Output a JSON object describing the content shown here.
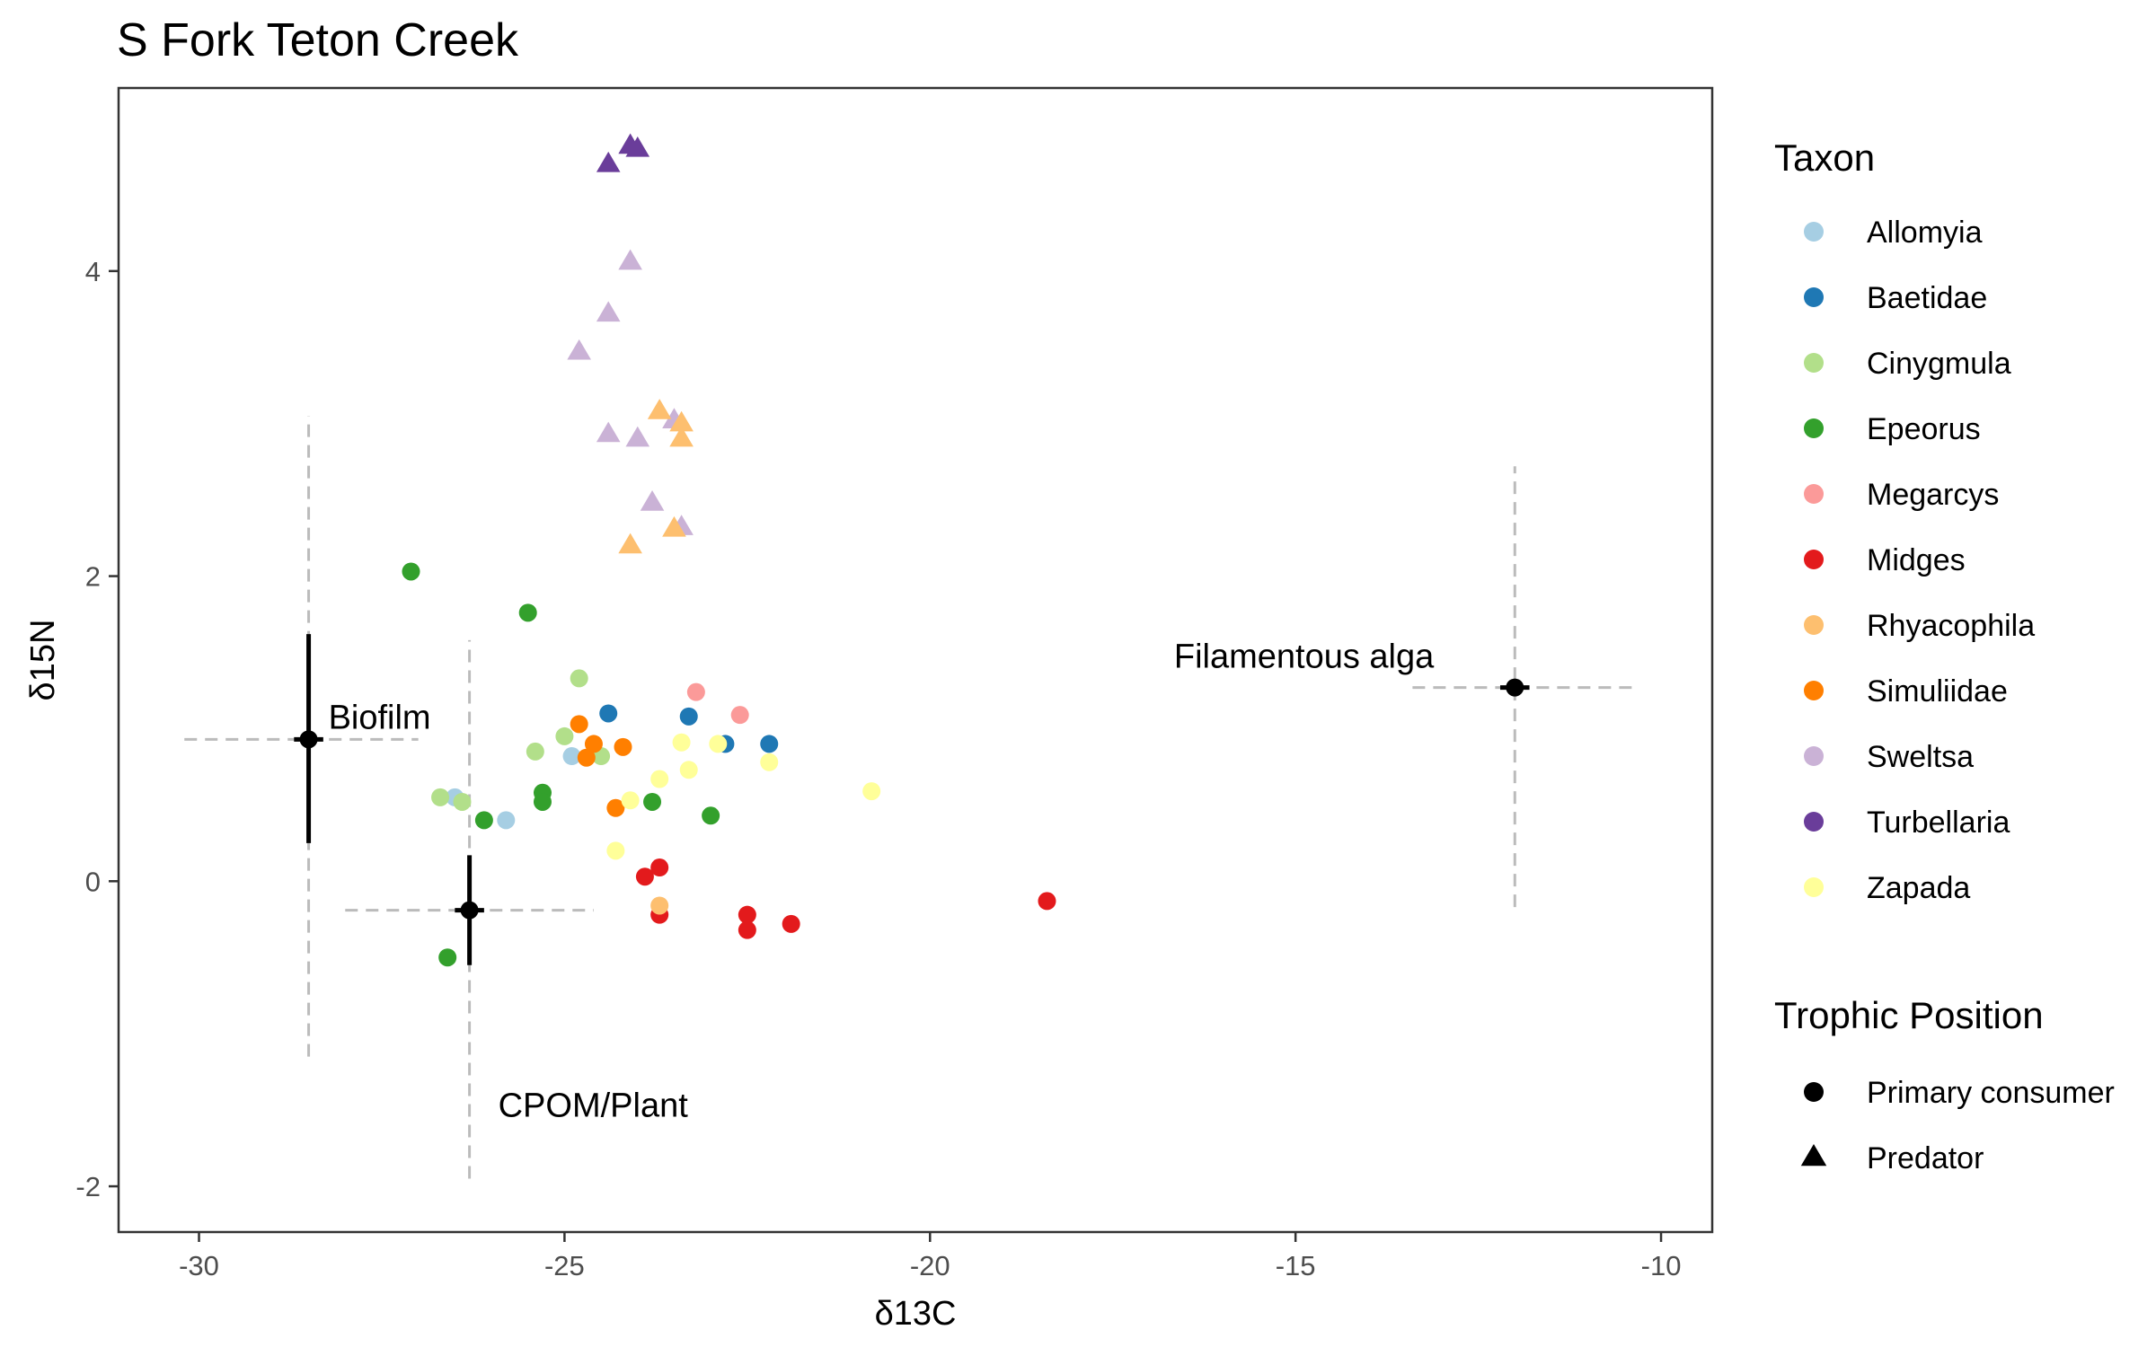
{
  "chart_data": {
    "type": "scatter",
    "title": "S Fork Teton Creek",
    "xlabel": "δ13C",
    "ylabel": "δ15N",
    "xlim": [
      -31.1,
      -9.3
    ],
    "ylim": [
      -2.3,
      5.2
    ],
    "xticks": [
      -30,
      -25,
      -20,
      -15,
      -10
    ],
    "yticks": [
      -2,
      0,
      2,
      4
    ],
    "grid": false,
    "legend_placement": "right",
    "legend": {
      "taxon_title": "Taxon",
      "trophic_title": "Trophic Position",
      "taxa": [
        {
          "name": "Allomyia",
          "color": "#a6cee3"
        },
        {
          "name": "Baetidae",
          "color": "#1f78b4"
        },
        {
          "name": "Cinygmula",
          "color": "#b2df8a"
        },
        {
          "name": "Epeorus",
          "color": "#33a02c"
        },
        {
          "name": "Megarcys",
          "color": "#fb9a99"
        },
        {
          "name": "Midges",
          "color": "#e31a1c"
        },
        {
          "name": "Rhyacophila",
          "color": "#fdbf6f"
        },
        {
          "name": "Simuliidae",
          "color": "#ff7f00"
        },
        {
          "name": "Sweltsa",
          "color": "#cab2d6"
        },
        {
          "name": "Turbellaria",
          "color": "#6a3d9a"
        },
        {
          "name": "Zapada",
          "color": "#ffff99"
        }
      ],
      "trophic": [
        {
          "name": "Primary consumer",
          "shape": "circle"
        },
        {
          "name": "Predator",
          "shape": "triangle"
        }
      ]
    },
    "sources": [
      {
        "name": "Biofilm",
        "x": -28.5,
        "y": 0.93,
        "sd_x_lo": -30.2,
        "sd_x_hi": -27.0,
        "sd_y_lo": -1.15,
        "sd_y_hi": 3.05,
        "se_y_lo": 0.25,
        "se_y_hi": 1.62,
        "se_x_lo": -28.7,
        "se_x_hi": -28.3
      },
      {
        "name": "CPOM/Plant",
        "x": -26.3,
        "y": -0.19,
        "sd_x_lo": -28.0,
        "sd_x_hi": -24.6,
        "sd_y_lo": -1.95,
        "sd_y_hi": 1.58,
        "se_y_lo": -0.55,
        "se_y_hi": 0.17,
        "se_x_lo": -26.5,
        "se_x_hi": -26.1
      },
      {
        "name": "Filamentous alga",
        "x": -12.0,
        "y": 1.27,
        "sd_x_lo": -13.4,
        "sd_x_hi": -10.4,
        "sd_y_lo": -0.17,
        "sd_y_hi": 2.72,
        "se_y_lo": 1.22,
        "se_y_hi": 1.32,
        "se_x_lo": -12.2,
        "se_x_hi": -11.8
      }
    ],
    "points": [
      {
        "taxon": "Allomyia",
        "trophic": "Primary consumer",
        "x": -26.5,
        "y": 0.55
      },
      {
        "taxon": "Allomyia",
        "trophic": "Primary consumer",
        "x": -25.8,
        "y": 0.4
      },
      {
        "taxon": "Allomyia",
        "trophic": "Primary consumer",
        "x": -24.9,
        "y": 0.82
      },
      {
        "taxon": "Baetidae",
        "trophic": "Primary consumer",
        "x": -24.4,
        "y": 1.1
      },
      {
        "taxon": "Baetidae",
        "trophic": "Primary consumer",
        "x": -23.3,
        "y": 1.08
      },
      {
        "taxon": "Baetidae",
        "trophic": "Primary consumer",
        "x": -22.8,
        "y": 0.9
      },
      {
        "taxon": "Baetidae",
        "trophic": "Primary consumer",
        "x": -22.2,
        "y": 0.9
      },
      {
        "taxon": "Cinygmula",
        "trophic": "Primary consumer",
        "x": -26.7,
        "y": 0.55
      },
      {
        "taxon": "Cinygmula",
        "trophic": "Primary consumer",
        "x": -26.4,
        "y": 0.52
      },
      {
        "taxon": "Cinygmula",
        "trophic": "Primary consumer",
        "x": -25.4,
        "y": 0.85
      },
      {
        "taxon": "Cinygmula",
        "trophic": "Primary consumer",
        "x": -25.0,
        "y": 0.95
      },
      {
        "taxon": "Cinygmula",
        "trophic": "Primary consumer",
        "x": -24.8,
        "y": 1.33
      },
      {
        "taxon": "Cinygmula",
        "trophic": "Primary consumer",
        "x": -24.5,
        "y": 0.82
      },
      {
        "taxon": "Epeorus",
        "trophic": "Primary consumer",
        "x": -27.1,
        "y": 2.03
      },
      {
        "taxon": "Epeorus",
        "trophic": "Primary consumer",
        "x": -25.5,
        "y": 1.76
      },
      {
        "taxon": "Epeorus",
        "trophic": "Primary consumer",
        "x": -25.3,
        "y": 0.58
      },
      {
        "taxon": "Epeorus",
        "trophic": "Primary consumer",
        "x": -25.3,
        "y": 0.52
      },
      {
        "taxon": "Epeorus",
        "trophic": "Primary consumer",
        "x": -26.1,
        "y": 0.4
      },
      {
        "taxon": "Epeorus",
        "trophic": "Primary consumer",
        "x": -26.6,
        "y": -0.5
      },
      {
        "taxon": "Epeorus",
        "trophic": "Primary consumer",
        "x": -23.8,
        "y": 0.52
      },
      {
        "taxon": "Epeorus",
        "trophic": "Primary consumer",
        "x": -23.0,
        "y": 0.43
      },
      {
        "taxon": "Megarcys",
        "trophic": "Primary consumer",
        "x": -23.2,
        "y": 1.24
      },
      {
        "taxon": "Megarcys",
        "trophic": "Primary consumer",
        "x": -22.6,
        "y": 1.09
      },
      {
        "taxon": "Midges",
        "trophic": "Primary consumer",
        "x": -23.9,
        "y": 0.03
      },
      {
        "taxon": "Midges",
        "trophic": "Primary consumer",
        "x": -23.7,
        "y": 0.09
      },
      {
        "taxon": "Midges",
        "trophic": "Primary consumer",
        "x": -23.7,
        "y": -0.22
      },
      {
        "taxon": "Midges",
        "trophic": "Primary consumer",
        "x": -22.5,
        "y": -0.22
      },
      {
        "taxon": "Midges",
        "trophic": "Primary consumer",
        "x": -22.5,
        "y": -0.32
      },
      {
        "taxon": "Midges",
        "trophic": "Primary consumer",
        "x": -21.9,
        "y": -0.28
      },
      {
        "taxon": "Midges",
        "trophic": "Primary consumer",
        "x": -18.4,
        "y": -0.13
      },
      {
        "taxon": "Rhyacophila",
        "trophic": "Primary consumer",
        "x": -23.7,
        "y": -0.16
      },
      {
        "taxon": "Simuliidae",
        "trophic": "Primary consumer",
        "x": -24.8,
        "y": 1.03
      },
      {
        "taxon": "Simuliidae",
        "trophic": "Primary consumer",
        "x": -24.6,
        "y": 0.9
      },
      {
        "taxon": "Simuliidae",
        "trophic": "Primary consumer",
        "x": -24.7,
        "y": 0.81
      },
      {
        "taxon": "Simuliidae",
        "trophic": "Primary consumer",
        "x": -24.2,
        "y": 0.88
      },
      {
        "taxon": "Simuliidae",
        "trophic": "Primary consumer",
        "x": -24.3,
        "y": 0.48
      },
      {
        "taxon": "Zapada",
        "trophic": "Primary consumer",
        "x": -24.1,
        "y": 0.53
      },
      {
        "taxon": "Zapada",
        "trophic": "Primary consumer",
        "x": -23.7,
        "y": 0.67
      },
      {
        "taxon": "Zapada",
        "trophic": "Primary consumer",
        "x": -23.4,
        "y": 0.91
      },
      {
        "taxon": "Zapada",
        "trophic": "Primary consumer",
        "x": -23.3,
        "y": 0.73
      },
      {
        "taxon": "Zapada",
        "trophic": "Primary consumer",
        "x": -22.9,
        "y": 0.9
      },
      {
        "taxon": "Zapada",
        "trophic": "Primary consumer",
        "x": -22.2,
        "y": 0.78
      },
      {
        "taxon": "Zapada",
        "trophic": "Primary consumer",
        "x": -20.8,
        "y": 0.59
      },
      {
        "taxon": "Zapada",
        "trophic": "Primary consumer",
        "x": -24.3,
        "y": 0.2
      },
      {
        "taxon": "Turbellaria",
        "trophic": "Predator",
        "x": -24.4,
        "y": 4.7
      },
      {
        "taxon": "Turbellaria",
        "trophic": "Predator",
        "x": -24.1,
        "y": 4.82
      },
      {
        "taxon": "Turbellaria",
        "trophic": "Predator",
        "x": -24.0,
        "y": 4.8
      },
      {
        "taxon": "Sweltsa",
        "trophic": "Predator",
        "x": -24.1,
        "y": 4.06
      },
      {
        "taxon": "Sweltsa",
        "trophic": "Predator",
        "x": -24.4,
        "y": 3.72
      },
      {
        "taxon": "Sweltsa",
        "trophic": "Predator",
        "x": -24.8,
        "y": 3.47
      },
      {
        "taxon": "Sweltsa",
        "trophic": "Predator",
        "x": -24.4,
        "y": 2.93
      },
      {
        "taxon": "Sweltsa",
        "trophic": "Predator",
        "x": -24.0,
        "y": 2.9
      },
      {
        "taxon": "Sweltsa",
        "trophic": "Predator",
        "x": -23.5,
        "y": 3.02
      },
      {
        "taxon": "Sweltsa",
        "trophic": "Predator",
        "x": -23.8,
        "y": 2.48
      },
      {
        "taxon": "Sweltsa",
        "trophic": "Predator",
        "x": -23.4,
        "y": 2.32
      },
      {
        "taxon": "Rhyacophila",
        "trophic": "Predator",
        "x": -23.7,
        "y": 3.08
      },
      {
        "taxon": "Rhyacophila",
        "trophic": "Predator",
        "x": -23.4,
        "y": 3.0
      },
      {
        "taxon": "Rhyacophila",
        "trophic": "Predator",
        "x": -23.4,
        "y": 2.9
      },
      {
        "taxon": "Rhyacophila",
        "trophic": "Predator",
        "x": -23.5,
        "y": 2.31
      },
      {
        "taxon": "Rhyacophila",
        "trophic": "Predator",
        "x": -24.1,
        "y": 2.2
      }
    ]
  }
}
